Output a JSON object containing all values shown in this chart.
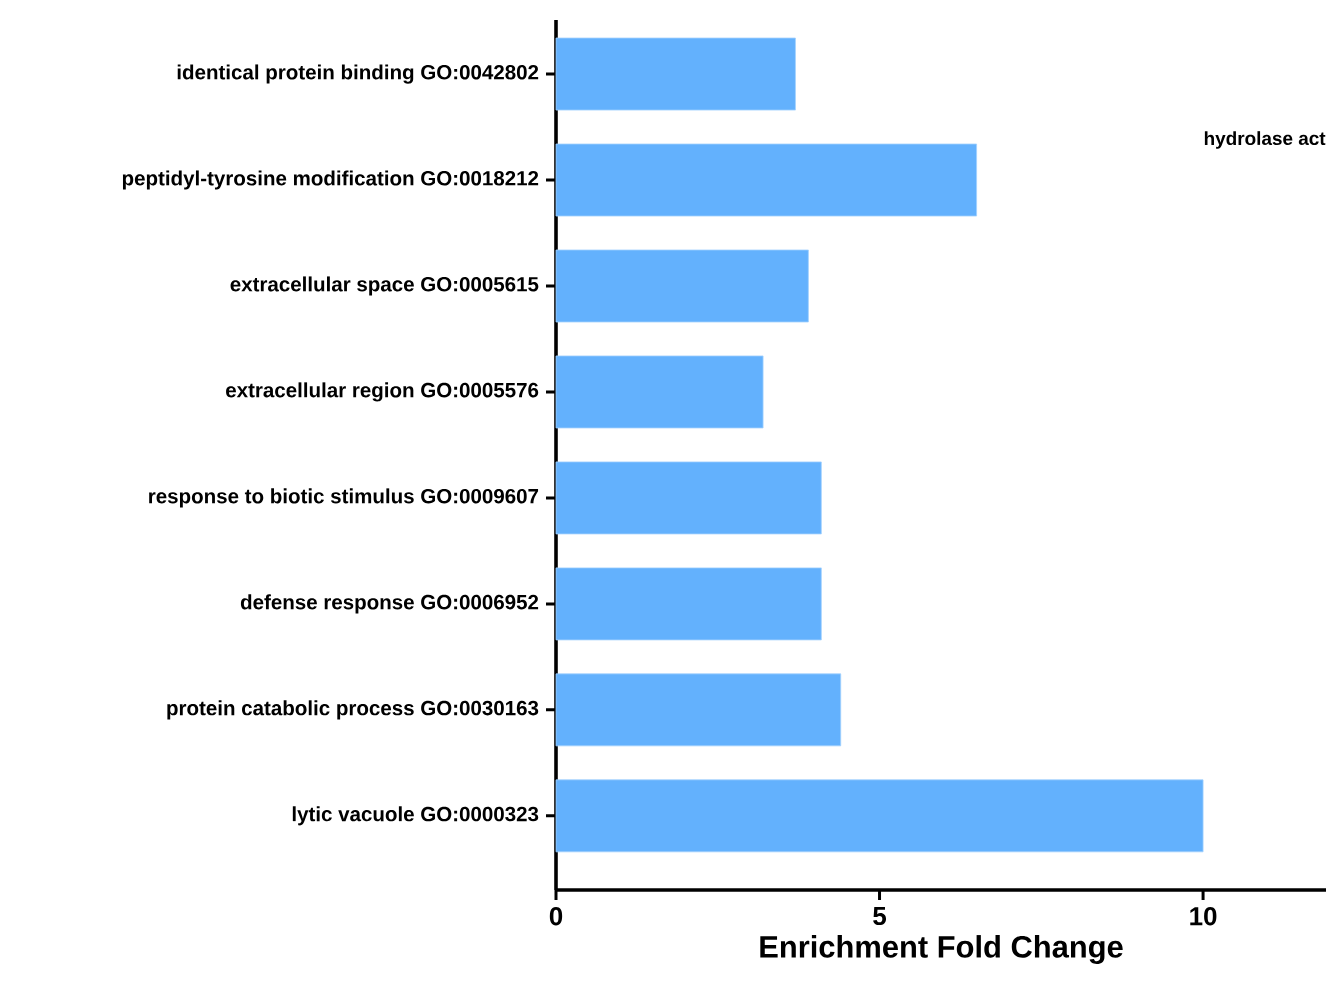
{
  "chart_data": {
    "type": "bar",
    "orientation": "horizontal",
    "categories": [
      "identical protein binding GO:0042802",
      "peptidyl-tyrosine modification GO:0018212",
      "extracellular space GO:0005615",
      "extracellular region GO:0005576",
      "response to biotic stimulus GO:0009607",
      "defense response GO:0006952",
      "protein catabolic process GO:0030163",
      "lytic vacuole GO:0000323"
    ],
    "values": [
      3.7,
      6.5,
      3.9,
      3.2,
      4.1,
      4.1,
      4.4,
      10.0
    ],
    "color": "#63b1fd",
    "xlabel": "Enrichment Fold Change",
    "xlim": [
      0,
      11.9
    ],
    "xticks": [
      0,
      5,
      10
    ],
    "annotations": [
      "hydrolase act"
    ]
  }
}
